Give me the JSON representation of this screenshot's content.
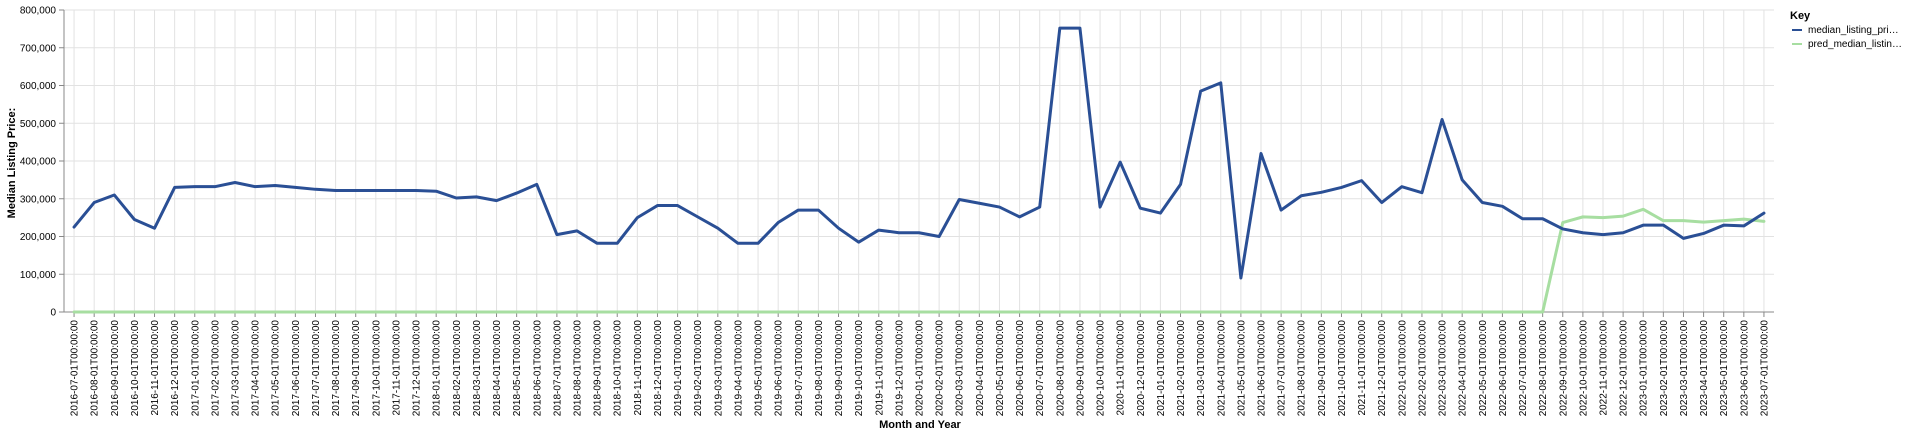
{
  "chart_data": {
    "type": "line",
    "xlabel": "Month and Year",
    "ylabel": "Median Listing Price:",
    "ylim": [
      0,
      800000
    ],
    "yticks": [
      0,
      100000,
      200000,
      300000,
      400000,
      500000,
      600000,
      700000,
      800000
    ],
    "grid": true,
    "legend": {
      "title": "Key",
      "placement": "top-right",
      "entries": [
        "median_listing_pri…",
        "pred_median_listin…"
      ]
    },
    "x": [
      "2016-07-01T00:00:00",
      "2016-08-01T00:00:00",
      "2016-09-01T00:00:00",
      "2016-10-01T00:00:00",
      "2016-11-01T00:00:00",
      "2016-12-01T00:00:00",
      "2017-01-01T00:00:00",
      "2017-02-01T00:00:00",
      "2017-03-01T00:00:00",
      "2017-04-01T00:00:00",
      "2017-05-01T00:00:00",
      "2017-06-01T00:00:00",
      "2017-07-01T00:00:00",
      "2017-08-01T00:00:00",
      "2017-09-01T00:00:00",
      "2017-10-01T00:00:00",
      "2017-11-01T00:00:00",
      "2017-12-01T00:00:00",
      "2018-01-01T00:00:00",
      "2018-02-01T00:00:00",
      "2018-03-01T00:00:00",
      "2018-04-01T00:00:00",
      "2018-05-01T00:00:00",
      "2018-06-01T00:00:00",
      "2018-07-01T00:00:00",
      "2018-08-01T00:00:00",
      "2018-09-01T00:00:00",
      "2018-10-01T00:00:00",
      "2018-11-01T00:00:00",
      "2018-12-01T00:00:00",
      "2019-01-01T00:00:00",
      "2019-02-01T00:00:00",
      "2019-03-01T00:00:00",
      "2019-04-01T00:00:00",
      "2019-05-01T00:00:00",
      "2019-06-01T00:00:00",
      "2019-07-01T00:00:00",
      "2019-08-01T00:00:00",
      "2019-09-01T00:00:00",
      "2019-10-01T00:00:00",
      "2019-11-01T00:00:00",
      "2019-12-01T00:00:00",
      "2020-01-01T00:00:00",
      "2020-02-01T00:00:00",
      "2020-03-01T00:00:00",
      "2020-04-01T00:00:00",
      "2020-05-01T00:00:00",
      "2020-06-01T00:00:00",
      "2020-07-01T00:00:00",
      "2020-08-01T00:00:00",
      "2020-09-01T00:00:00",
      "2020-10-01T00:00:00",
      "2020-11-01T00:00:00",
      "2020-12-01T00:00:00",
      "2021-01-01T00:00:00",
      "2021-02-01T00:00:00",
      "2021-03-01T00:00:00",
      "2021-04-01T00:00:00",
      "2021-05-01T00:00:00",
      "2021-06-01T00:00:00",
      "2021-07-01T00:00:00",
      "2021-08-01T00:00:00",
      "2021-09-01T00:00:00",
      "2021-10-01T00:00:00",
      "2021-11-01T00:00:00",
      "2021-12-01T00:00:00",
      "2022-01-01T00:00:00",
      "2022-02-01T00:00:00",
      "2022-03-01T00:00:00",
      "2022-04-01T00:00:00",
      "2022-05-01T00:00:00",
      "2022-06-01T00:00:00",
      "2022-07-01T00:00:00",
      "2022-08-01T00:00:00",
      "2022-09-01T00:00:00",
      "2022-10-01T00:00:00",
      "2022-11-01T00:00:00",
      "2022-12-01T00:00:00",
      "2023-01-01T00:00:00",
      "2023-02-01T00:00:00",
      "2023-03-01T00:00:00",
      "2023-04-01T00:00:00",
      "2023-05-01T00:00:00",
      "2023-06-01T00:00:00",
      "2023-07-01T00:00:00"
    ],
    "series": [
      {
        "name": "median_listing_pri…",
        "color": "#2a4f95",
        "values": [
          225000,
          290000,
          310000,
          245000,
          222000,
          330000,
          332000,
          332000,
          343000,
          332000,
          335000,
          330000,
          325000,
          322000,
          322000,
          322000,
          322000,
          322000,
          320000,
          302000,
          305000,
          295000,
          315000,
          338000,
          205000,
          215000,
          182000,
          182000,
          250000,
          282000,
          282000,
          252000,
          222000,
          182000,
          182000,
          237000,
          270000,
          270000,
          222000,
          185000,
          217000,
          210000,
          210000,
          200000,
          298000,
          288000,
          278000,
          252000,
          278000,
          752000,
          752000,
          278000,
          397000,
          275000,
          262000,
          338000,
          585000,
          607000,
          90000,
          420000,
          270000,
          308000,
          317000,
          330000,
          348000,
          290000,
          332000,
          316000,
          510000,
          350000,
          290000,
          280000,
          247000,
          247000,
          220000,
          210000,
          205000,
          210000,
          230000,
          230000,
          195000,
          208000,
          230000,
          228000,
          262000
        ]
      },
      {
        "name": "pred_median_listin…",
        "color": "#a7dea1",
        "values": [
          0,
          0,
          0,
          0,
          0,
          0,
          0,
          0,
          0,
          0,
          0,
          0,
          0,
          0,
          0,
          0,
          0,
          0,
          0,
          0,
          0,
          0,
          0,
          0,
          0,
          0,
          0,
          0,
          0,
          0,
          0,
          0,
          0,
          0,
          0,
          0,
          0,
          0,
          0,
          0,
          0,
          0,
          0,
          0,
          0,
          0,
          0,
          0,
          0,
          0,
          0,
          0,
          0,
          0,
          0,
          0,
          0,
          0,
          0,
          0,
          0,
          0,
          0,
          0,
          0,
          0,
          0,
          0,
          0,
          0,
          0,
          0,
          0,
          0,
          237000,
          252000,
          250000,
          254000,
          272000,
          242000,
          242000,
          238000,
          242000,
          246000,
          240000
        ]
      }
    ]
  }
}
